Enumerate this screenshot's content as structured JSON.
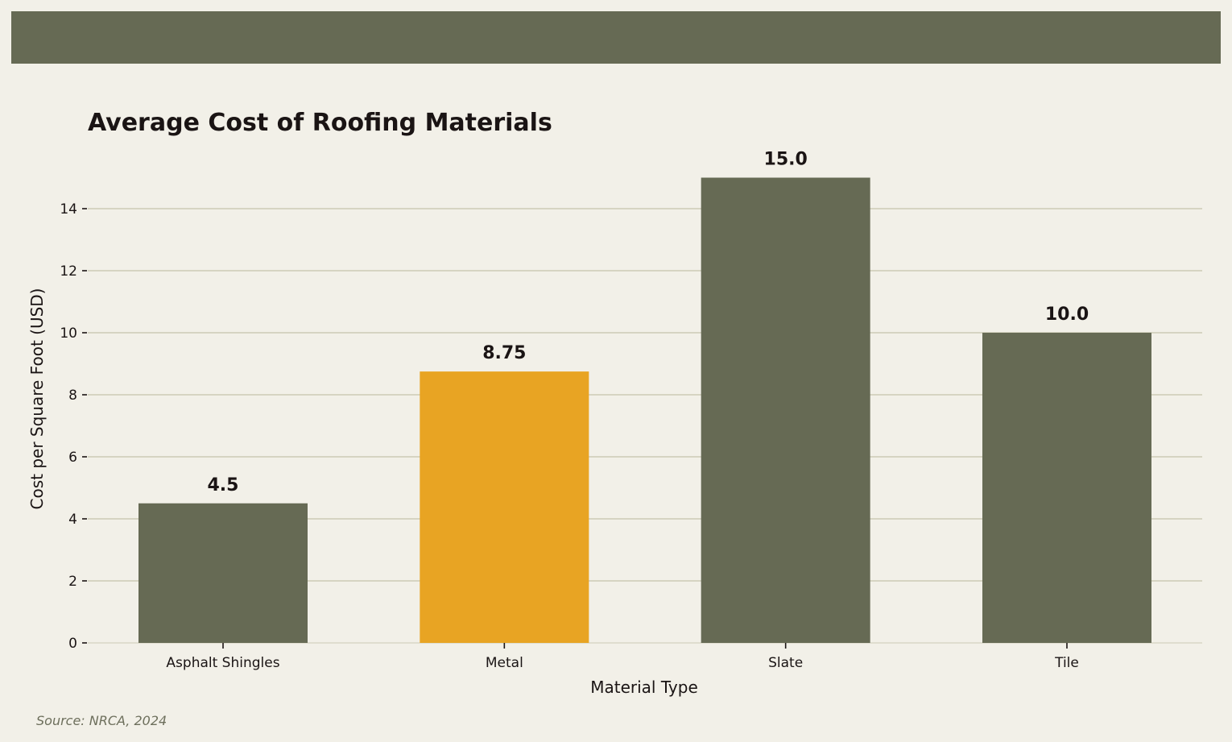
{
  "colors": {
    "background": "#f2f0e8",
    "header_band": "#666a54",
    "bar_default": "#666a54",
    "bar_highlight": "#e8a423",
    "grid": "#cccab6",
    "text": "#1a1414",
    "source_text": "#6d6f5c"
  },
  "source": "Source: NRCA, 2024",
  "chart_data": {
    "type": "bar",
    "title": "Average Cost of Roofing Materials",
    "xlabel": "Material Type",
    "ylabel": "Cost per Square Foot (USD)",
    "categories": [
      "Asphalt Shingles",
      "Metal",
      "Slate",
      "Tile"
    ],
    "values": [
      4.5,
      8.75,
      15.0,
      10.0
    ],
    "value_labels": [
      "4.5",
      "8.75",
      "15.0",
      "10.0"
    ],
    "highlight_index": 1,
    "yticks": [
      0,
      2,
      4,
      6,
      8,
      10,
      12,
      14
    ],
    "ylim": [
      0,
      15.75
    ],
    "grid": true,
    "legend": "none"
  }
}
